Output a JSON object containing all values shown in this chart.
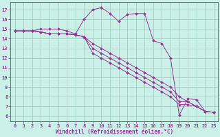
{
  "xlabel": "Windchill (Refroidissement éolien,°C)",
  "bg_color": "#caf0e8",
  "grid_color": "#99ccbb",
  "line_color": "#993399",
  "spine_color": "#993399",
  "x_ticks": [
    0,
    1,
    2,
    3,
    4,
    5,
    6,
    7,
    8,
    9,
    10,
    11,
    12,
    13,
    14,
    15,
    16,
    17,
    18,
    19,
    20,
    21,
    22,
    23
  ],
  "y_ticks": [
    6,
    7,
    8,
    9,
    10,
    11,
    12,
    13,
    14,
    15,
    16,
    17
  ],
  "xlim": [
    -0.5,
    23.5
  ],
  "ylim": [
    5.5,
    17.8
  ],
  "series": [
    [
      14.8,
      14.8,
      14.8,
      15.0,
      15.0,
      15.0,
      14.8,
      14.5,
      16.0,
      17.0,
      17.2,
      16.6,
      15.8,
      16.5,
      16.6,
      16.6,
      13.8,
      13.5,
      12.0,
      6.1,
      7.8,
      7.7,
      6.5,
      6.4
    ],
    [
      14.8,
      14.8,
      14.8,
      14.7,
      14.5,
      14.5,
      14.5,
      14.4,
      14.2,
      13.5,
      13.0,
      12.5,
      12.0,
      11.5,
      11.0,
      10.5,
      10.0,
      9.5,
      9.0,
      8.0,
      7.5,
      7.0,
      6.5,
      6.4
    ],
    [
      14.8,
      14.8,
      14.8,
      14.7,
      14.5,
      14.5,
      14.5,
      14.4,
      14.2,
      13.0,
      12.5,
      12.0,
      11.5,
      11.0,
      10.5,
      10.0,
      9.5,
      9.0,
      8.5,
      7.5,
      7.5,
      7.0,
      6.5,
      6.4
    ],
    [
      14.8,
      14.8,
      14.8,
      14.7,
      14.5,
      14.5,
      14.5,
      14.4,
      14.2,
      12.5,
      12.0,
      11.5,
      11.0,
      10.5,
      10.0,
      9.5,
      9.0,
      8.5,
      8.0,
      7.2,
      7.2,
      7.0,
      6.5,
      6.4
    ]
  ],
  "marker_size": 2.0,
  "line_width": 0.7,
  "tick_fontsize": 5.0,
  "xlabel_fontsize": 5.5
}
